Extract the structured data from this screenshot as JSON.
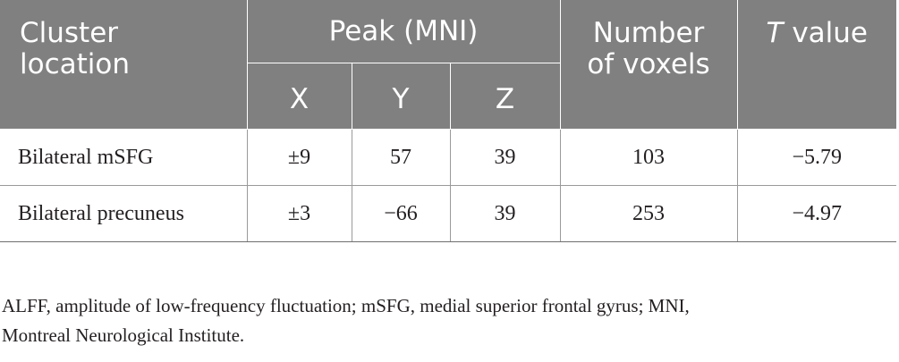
{
  "table": {
    "headers": {
      "cluster_location_line1": "Cluster",
      "cluster_location_line2": "location",
      "peak": "Peak (MNI)",
      "x": "X",
      "y": "Y",
      "z": "Z",
      "voxels_line1": "Number",
      "voxels_line2": "of voxels",
      "t_value_italic": "T",
      "t_value_rest": " value"
    },
    "rows": [
      {
        "location": "Bilateral mSFG",
        "x": "±9",
        "y": "57",
        "z": "39",
        "voxels": "103",
        "t": "−5.79"
      },
      {
        "location": "Bilateral precuneus",
        "x": "±3",
        "y": "−66",
        "z": "39",
        "voxels": "253",
        "t": "−4.97"
      }
    ],
    "header_color": "#808080",
    "header_text_color": "#ffffff"
  },
  "footnote": {
    "line1": "ALFF, amplitude of low-frequency fluctuation; mSFG, medial superior frontal gyrus; MNI,",
    "line2": "Montreal Neurological Institute."
  }
}
